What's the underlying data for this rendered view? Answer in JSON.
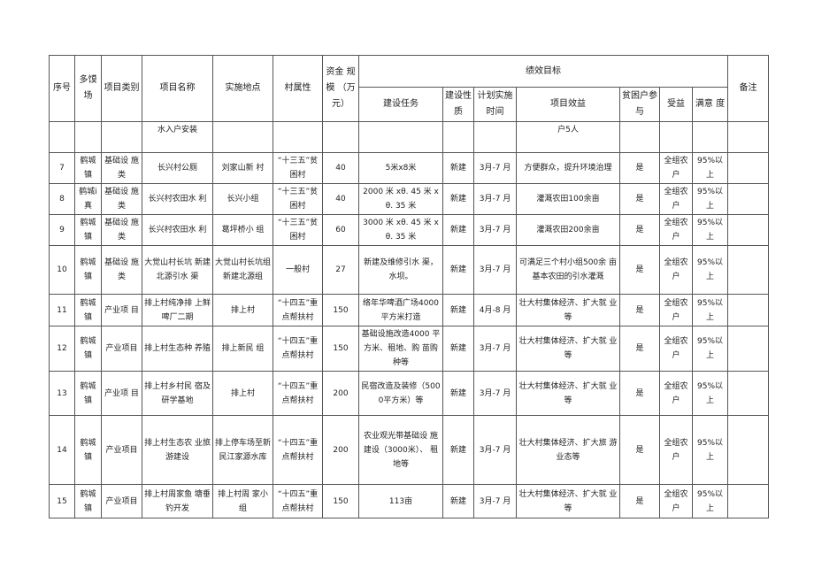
{
  "header": {
    "seq": "序号",
    "town": "多馍场",
    "category": "项目类别",
    "name": "项目名称",
    "location": "实施地点",
    "village_type": "村属性",
    "funds": "资金 规模 （万元）",
    "performance": "绩效目标",
    "task": "建设任务",
    "nature": "建设性质",
    "schedule": "计划实施时间",
    "benefit": "项目效益",
    "poor_participation": "贫困户参与",
    "beneficiary": "受益",
    "satisfaction": "满意 度",
    "remark": "备注"
  },
  "continuation_row": {
    "name": "水入户安装",
    "benefit": "户5人"
  },
  "rows": [
    {
      "seq": "7",
      "town": "鹤城镇",
      "category": "基础设 施类",
      "name": "长兴村公厕",
      "location": "刘家山新 村",
      "village_type": "“十三五”贫困村",
      "funds": "40",
      "task": "5米x8米",
      "nature": "新建",
      "schedule": "3月-7 月",
      "benefit": "方便群众，提升环境治理",
      "poor": "是",
      "beneficiary": "全组农户",
      "satisfaction": "95%以 上",
      "remark": ""
    },
    {
      "seq": "8",
      "town": "鹤城i真",
      "category": "基础设 施类",
      "name": "长兴村农田水 利",
      "location": "长兴小组",
      "village_type": "“十三五”贫困村",
      "funds": "40",
      "task": "2000 米 xθ. 45 米 xθ. 35 米",
      "nature": "新建",
      "schedule": "3月-7 月",
      "benefit": "灌溉农田100余亩",
      "poor": "是",
      "beneficiary": "全组农户",
      "satisfaction": "95%以 上",
      "remark": ""
    },
    {
      "seq": "9",
      "town": "鹤城镇",
      "category": "基础设 施类",
      "name": "长兴村农田水 利",
      "location": "葛坪桥小 组",
      "village_type": "“十三五”贫困村",
      "funds": "60",
      "task": "3000 米 xθ. 45 米 xθ. 35 米",
      "nature": "新建",
      "schedule": "3月-7 月",
      "benefit": "灌溉农田200余亩",
      "poor": "是",
      "beneficiary": "全组农户",
      "satisfaction": "95%以 上",
      "remark": ""
    },
    {
      "seq": "10",
      "town": "鹤城镇",
      "category": "基础设 施类",
      "name": "大觉山村长坑 新建北源引水 渠",
      "location": "大觉山村长坑组新建北源组",
      "village_type": "一般村",
      "funds": "27",
      "task": "新建及维修引水 渠，水坝。",
      "nature": "新建",
      "schedule": "3月-7 月",
      "benefit": "可满足三个村小组500余 亩基本农田的引水灌溉",
      "poor": "是",
      "beneficiary": "全组农户",
      "satisfaction": "95%以 上",
      "remark": ""
    },
    {
      "seq": "11",
      "town": "鹤城镇",
      "category": "产业项 目",
      "name": "排上村纯净排 上鲜啤厂二期",
      "location": "排上村",
      "village_type": "“十四五”重点帮扶村",
      "funds": "150",
      "task": "络年华啤酒广场4000平方米打造",
      "nature": "新建",
      "schedule": "4月-8 月",
      "benefit": "壮大村集体经济、扩大就 业等",
      "poor": "是",
      "beneficiary": "全组农户",
      "satisfaction": "95%以 上",
      "remark": ""
    },
    {
      "seq": "12",
      "town": "鹤城镇",
      "category": "产业项目",
      "name": "排上村生态种 养殖",
      "location": "排上新民 组",
      "village_type": "“十四五”重点帮扶村",
      "funds": "150",
      "task": "基础设施改造4000 平方米、租地、购 苗购种等",
      "nature": "新建",
      "schedule": "3月-7 月",
      "benefit": "壮大村集体经济、扩大就 业等",
      "poor": "是",
      "beneficiary": "全组农户",
      "satisfaction": "95%以 上",
      "remark": ""
    },
    {
      "seq": "13",
      "town": "鹤城镇",
      "category": "产业项 目",
      "name": "排上村乡村民 宿及研学基地",
      "location": "排上村",
      "village_type": "“十四五”重点帮扶村",
      "funds": "200",
      "task": "民宿改造及装修（5000平方米）等",
      "nature": "新建",
      "schedule": "3月-7 月",
      "benefit": "壮大村集体经济、扩大就 业等",
      "poor": "是",
      "beneficiary": "全组农户",
      "satisfaction": "95%以 上",
      "remark": ""
    },
    {
      "seq": "14",
      "town": "鹤城镇",
      "category": "产业项目",
      "name": "排上村生态农 业旅游建设",
      "location": "排上停车场至新民江家源水库",
      "village_type": "“十四五”重点帮扶村",
      "funds": "200",
      "task": "农业观光带基础设 施建设（3000米）、 租地等",
      "nature": "新建",
      "schedule": "3月-7 月",
      "benefit": "壮大村集体经济、扩大旅 游业态等",
      "poor": "是",
      "beneficiary": "全组农户",
      "satisfaction": "95%以 上",
      "remark": ""
    },
    {
      "seq": "15",
      "town": "鹤城镇",
      "category": "产业项目",
      "name": "排上村周家鱼 塘垂钓开发",
      "location": "排上村周 家小组",
      "village_type": "“十四五”重点帮扶村",
      "funds": "150",
      "task": "113亩",
      "nature": "新建",
      "schedule": "3月-7 月",
      "benefit": "壮大村集体经济、扩大就 业等",
      "poor": "是",
      "beneficiary": "全组农户",
      "satisfaction": "95%以 上",
      "remark": ""
    }
  ]
}
